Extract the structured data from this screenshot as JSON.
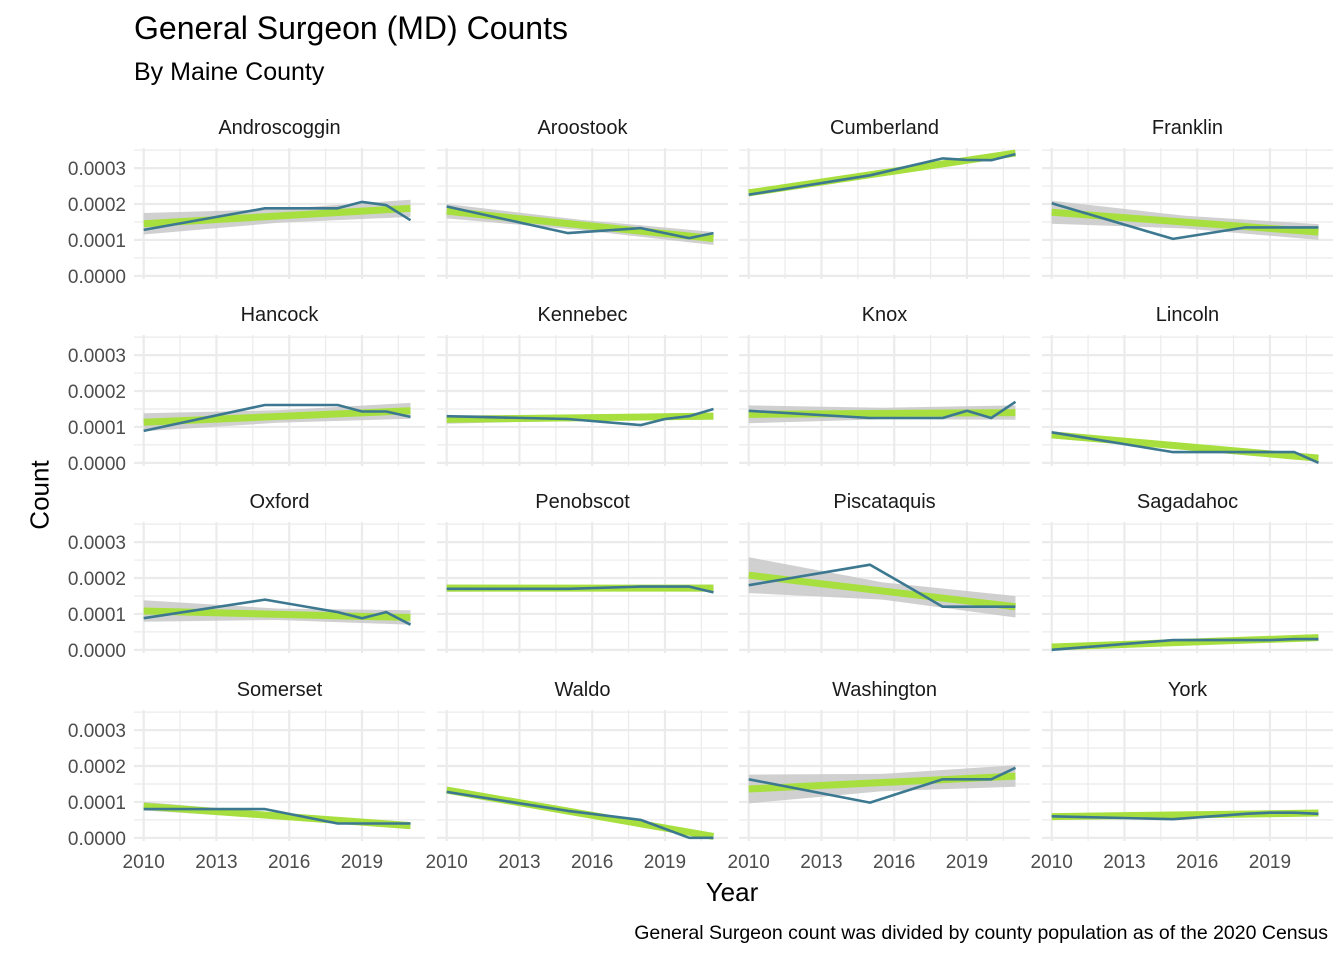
{
  "title": "General Surgeon (MD) Counts",
  "subtitle": "By Maine County",
  "caption": "General Surgeon count was divided by county population as of the 2020 Census",
  "chart_data": {
    "type": "line",
    "title": "General Surgeon (MD) Counts",
    "subtitle": "By Maine County",
    "xlabel": "Year",
    "ylabel": "Count",
    "x_ticks": [
      "2010",
      "2013",
      "2016",
      "2019"
    ],
    "y_ticks": [
      "0.0000",
      "0.0001",
      "0.0002",
      "0.0003"
    ],
    "xlim": [
      2009.6,
      2021.6
    ],
    "ylim": [
      -8.8e-06,
      0.000356
    ],
    "grid": true,
    "facet_ncol": 4,
    "colors": {
      "line": "#3c7890",
      "trend": "#a7df3e",
      "band": "#c8c8c8",
      "grid": "#ebebeb"
    },
    "x": [
      2010,
      2015,
      2018,
      2019,
      2020,
      2021
    ],
    "panels": [
      {
        "name": "Androscoggin",
        "values": [
          0.000128,
          0.000188,
          0.000188,
          0.000206,
          0.000197,
          0.000155
        ],
        "trend": [
          0.000145,
          0.000188
        ],
        "band_halfwidth": [
          3e-05,
          2.4e-05
        ]
      },
      {
        "name": "Aroostook",
        "values": [
          0.000193,
          0.000119,
          0.000133,
          0.000119,
          0.000105,
          0.000119
        ],
        "trend": [
          0.00018,
          0.000104
        ],
        "band_halfwidth": [
          2e-05,
          1.8e-05
        ]
      },
      {
        "name": "Cumberland",
        "values": [
          0.000226,
          0.00028,
          0.000327,
          0.000323,
          0.000322,
          0.000339
        ],
        "trend": [
          0.000231,
          0.000342
        ],
        "band_halfwidth": [
          6e-06,
          8e-06
        ]
      },
      {
        "name": "Franklin",
        "values": [
          0.000202,
          0.000103,
          0.000135,
          0.000135,
          0.000135,
          0.000135
        ],
        "trend": [
          0.000177,
          0.000122
        ],
        "band_halfwidth": [
          3.2e-05,
          2.2e-05
        ]
      },
      {
        "name": "Hancock",
        "values": [
          8.9e-05,
          0.000161,
          0.000161,
          0.000143,
          0.000143,
          0.000128
        ],
        "trend": [
          0.000113,
          0.000145
        ],
        "band_halfwidth": [
          2.5e-05,
          2.2e-05
        ]
      },
      {
        "name": "Kennebec",
        "values": [
          0.00013,
          0.000122,
          0.000105,
          0.000122,
          0.00013,
          0.00015
        ],
        "trend": [
          0.000121,
          0.00013
        ],
        "band_halfwidth": [
          1.2e-05,
          1e-05
        ]
      },
      {
        "name": "Knox",
        "values": [
          0.000145,
          0.000125,
          0.000125,
          0.000145,
          0.000125,
          0.00017
        ],
        "trend": [
          0.000135,
          0.00014
        ],
        "band_halfwidth": [
          2.5e-05,
          2e-05
        ]
      },
      {
        "name": "Lincoln",
        "values": [
          8.5e-05,
          3e-05,
          3e-05,
          3e-05,
          3e-05,
          0.0
        ],
        "trend": [
          7.8e-05,
          1.3e-05
        ],
        "band_halfwidth": [
          1e-05,
          1e-05
        ]
      },
      {
        "name": "Oxford",
        "values": [
          8.8e-05,
          0.00014,
          0.000105,
          8.8e-05,
          0.000105,
          7e-05
        ],
        "trend": [
          0.000108,
          9e-05
        ],
        "band_halfwidth": [
          3e-05,
          2e-05
        ]
      },
      {
        "name": "Penobscot",
        "values": [
          0.00017,
          0.00017,
          0.000176,
          0.000176,
          0.000176,
          0.00016
        ],
        "trend": [
          0.000172,
          0.000172
        ],
        "band_halfwidth": [
          1e-05,
          1e-05
        ]
      },
      {
        "name": "Piscataquis",
        "values": [
          0.00018,
          0.000237,
          0.00012,
          0.00012,
          0.00012,
          0.00012
        ],
        "trend": [
          0.000208,
          0.00012
        ],
        "band_halfwidth": [
          5e-05,
          3e-05
        ]
      },
      {
        "name": "Sagadahoc",
        "values": [
          0.0,
          2.7e-05,
          2.7e-05,
          2.7e-05,
          3e-05,
          3e-05
        ],
        "trend": [
          8e-06,
          3.4e-05
        ],
        "band_halfwidth": [
          6e-06,
          5e-06
        ]
      },
      {
        "name": "Somerset",
        "values": [
          8e-05,
          8e-05,
          4e-05,
          4e-05,
          4e-05,
          4e-05
        ],
        "trend": [
          8.8e-05,
          3.4e-05
        ],
        "band_halfwidth": [
          1.2e-05,
          1e-05
        ]
      },
      {
        "name": "Waldo",
        "values": [
          0.000128,
          7.5e-05,
          5e-05,
          2.5e-05,
          0.0,
          0.0
        ],
        "trend": [
          0.000133,
          4e-06
        ],
        "band_halfwidth": [
          1e-05,
          8e-06
        ]
      },
      {
        "name": "Washington",
        "values": [
          0.000163,
          9.8e-05,
          0.000163,
          0.000163,
          0.000163,
          0.000195
        ],
        "trend": [
          0.000136,
          0.000172
        ],
        "band_halfwidth": [
          4e-05,
          3e-05
        ]
      },
      {
        "name": "York",
        "values": [
          6e-05,
          5.2e-05,
          6.7e-05,
          7e-05,
          7e-05,
          6.7e-05
        ],
        "trend": [
          5.9e-05,
          6.9e-05
        ],
        "band_halfwidth": [
          6e-06,
          6e-06
        ]
      }
    ]
  }
}
